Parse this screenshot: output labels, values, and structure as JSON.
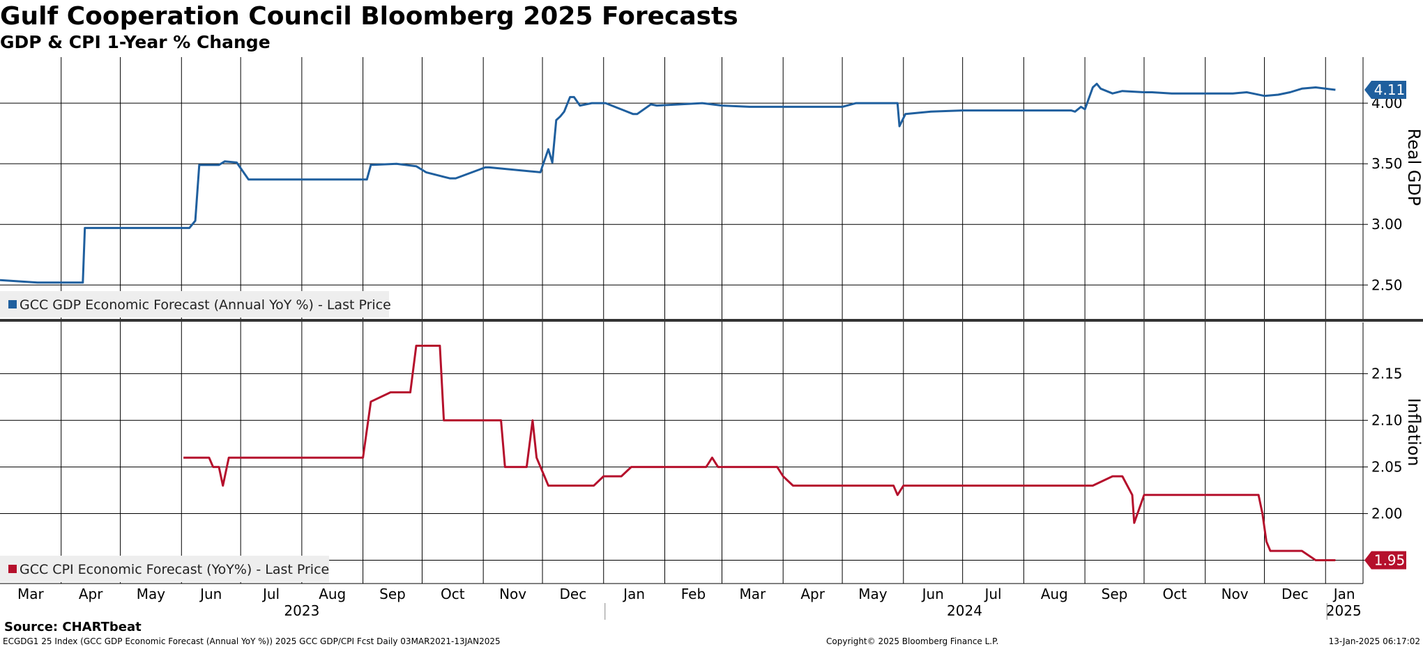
{
  "header": {
    "title": "Gulf Cooperation Council Bloomberg 2025 Forecasts",
    "subtitle": "GDP & CPI 1-Year % Change"
  },
  "footer": {
    "source": "Source: CHARTbeat",
    "description": "ECGDG1 25 Index (GCC GDP Economic Forecast (Annual YoY %)) 2025 GCC GDP/CPI Fcst  Daily 03MAR2021-13JAN2025",
    "copyright": "Copyright© 2025 Bloomberg Finance L.P.",
    "timestamp": "13-Jan-2025 06:17:02"
  },
  "colors": {
    "gdp": "#1f5f9e",
    "cpi": "#b5102c",
    "grid": "#000000",
    "legend_bg": "#eeeeee"
  },
  "chart_data": [
    {
      "type": "line",
      "ylabel": "Real GDP",
      "ylim": [
        2.22,
        4.38
      ],
      "yticks": [
        "2.50",
        "3.00",
        "3.50",
        "4.00"
      ],
      "legend": "GCC GDP Economic Forecast (Annual YoY %) - Last Price",
      "legend_position": "bottom-left",
      "last_value_label": "4.11",
      "series": [
        {
          "name": "GCC GDP Economic Forecast (Annual YoY %) - Last Price",
          "x": [
            "2023-03-01",
            "2023-03-20",
            "2023-04-12",
            "2023-04-13",
            "2023-06-05",
            "2023-06-08",
            "2023-06-10",
            "2023-06-20",
            "2023-06-23",
            "2023-06-29",
            "2023-07-05",
            "2023-09-03",
            "2023-09-05",
            "2023-09-18",
            "2023-09-28",
            "2023-10-03",
            "2023-10-15",
            "2023-10-18",
            "2023-11-02",
            "2023-11-04",
            "2023-11-30",
            "2023-12-01",
            "2023-12-04",
            "2023-12-06",
            "2023-12-08",
            "2023-12-10",
            "2023-12-12",
            "2023-12-15",
            "2023-12-17",
            "2023-12-20",
            "2023-12-26",
            "2023-12-28",
            "2024-01-01",
            "2024-01-02",
            "2024-01-16",
            "2024-01-18",
            "2024-01-25",
            "2024-01-28",
            "2024-02-20",
            "2024-03-01",
            "2024-03-15",
            "2024-03-22",
            "2024-04-01",
            "2024-04-05",
            "2024-05-01",
            "2024-05-08",
            "2024-05-29",
            "2024-05-30",
            "2024-06-02",
            "2024-06-15",
            "2024-07-01",
            "2024-08-25",
            "2024-08-27",
            "2024-08-30",
            "2024-09-01",
            "2024-09-05",
            "2024-09-07",
            "2024-09-09",
            "2024-09-15",
            "2024-09-20",
            "2024-10-01",
            "2024-10-05",
            "2024-10-15",
            "2024-11-08",
            "2024-11-15",
            "2024-11-22",
            "2024-11-25",
            "2024-12-01",
            "2024-12-08",
            "2024-12-14",
            "2024-12-20",
            "2024-12-27",
            "2025-01-06"
          ],
          "values": [
            2.54,
            2.52,
            2.52,
            2.97,
            2.97,
            3.03,
            3.49,
            3.49,
            3.52,
            3.51,
            3.37,
            3.37,
            3.49,
            3.5,
            3.48,
            3.43,
            3.38,
            3.38,
            3.47,
            3.47,
            3.43,
            3.48,
            3.62,
            3.51,
            3.86,
            3.89,
            3.93,
            4.05,
            4.05,
            3.98,
            4.0,
            4.0,
            4.0,
            4.0,
            3.91,
            3.91,
            3.99,
            3.98,
            4.0,
            3.98,
            3.97,
            3.97,
            3.97,
            3.97,
            3.97,
            4.0,
            4.0,
            3.81,
            3.91,
            3.93,
            3.94,
            3.94,
            3.93,
            3.97,
            3.95,
            4.13,
            4.16,
            4.12,
            4.08,
            4.1,
            4.09,
            4.09,
            4.08,
            4.08,
            4.08,
            4.09,
            4.08,
            4.06,
            4.07,
            4.09,
            4.12,
            4.13,
            4.11
          ]
        }
      ]
    },
    {
      "type": "line",
      "ylabel": "Inflation",
      "ylim": [
        1.925,
        2.205
      ],
      "yticks": [
        "1.95",
        "2.00",
        "2.05",
        "2.10",
        "2.15"
      ],
      "legend": "GCC CPI Economic Forecast (YoY%) - Last Price",
      "legend_position": "bottom-left",
      "last_value_label": "1.95",
      "series": [
        {
          "name": "GCC CPI Economic Forecast (YoY%) - Last Price",
          "x": [
            "2023-06-02",
            "2023-06-15",
            "2023-06-17",
            "2023-06-20",
            "2023-06-22",
            "2023-06-25",
            "2023-09-01",
            "2023-09-05",
            "2023-09-15",
            "2023-09-25",
            "2023-09-28",
            "2023-10-10",
            "2023-10-12",
            "2023-11-10",
            "2023-11-12",
            "2023-11-23",
            "2023-11-26",
            "2023-11-28",
            "2023-11-30",
            "2023-12-02",
            "2023-12-04",
            "2023-12-10",
            "2023-12-20",
            "2023-12-27",
            "2024-01-01",
            "2024-01-10",
            "2024-01-15",
            "2024-02-22",
            "2024-02-25",
            "2024-02-28",
            "2024-03-15",
            "2024-03-29",
            "2024-04-01",
            "2024-04-06",
            "2024-05-27",
            "2024-05-29",
            "2024-06-01",
            "2024-09-05",
            "2024-09-15",
            "2024-09-20",
            "2024-09-25",
            "2024-09-26",
            "2024-10-01",
            "2024-11-28",
            "2024-11-30",
            "2024-12-02",
            "2024-12-04",
            "2024-12-20",
            "2024-12-27",
            "2025-01-06"
          ],
          "values": [
            2.06,
            2.06,
            2.05,
            2.05,
            2.03,
            2.06,
            2.06,
            2.12,
            2.13,
            2.13,
            2.18,
            2.18,
            2.1,
            2.1,
            2.05,
            2.05,
            2.1,
            2.06,
            2.05,
            2.04,
            2.03,
            2.03,
            2.03,
            2.03,
            2.04,
            2.04,
            2.05,
            2.05,
            2.06,
            2.05,
            2.05,
            2.05,
            2.04,
            2.03,
            2.03,
            2.02,
            2.03,
            2.03,
            2.04,
            2.04,
            2.02,
            1.99,
            2.02,
            2.02,
            2.0,
            1.97,
            1.96,
            1.96,
            1.95,
            1.95
          ]
        }
      ]
    }
  ],
  "x_axis": {
    "range": [
      "2023-03-01",
      "2025-01-20"
    ],
    "months": [
      {
        "label": "Mar",
        "date": "2023-03-01"
      },
      {
        "label": "Apr",
        "date": "2023-04-01"
      },
      {
        "label": "May",
        "date": "2023-05-01"
      },
      {
        "label": "Jun",
        "date": "2023-06-01"
      },
      {
        "label": "Jul",
        "date": "2023-07-01"
      },
      {
        "label": "Aug",
        "date": "2023-08-01"
      },
      {
        "label": "Sep",
        "date": "2023-09-01"
      },
      {
        "label": "Oct",
        "date": "2023-10-01"
      },
      {
        "label": "Nov",
        "date": "2023-11-01"
      },
      {
        "label": "Dec",
        "date": "2023-12-01"
      },
      {
        "label": "Jan",
        "date": "2024-01-01"
      },
      {
        "label": "Feb",
        "date": "2024-02-01"
      },
      {
        "label": "Mar",
        "date": "2024-03-01"
      },
      {
        "label": "Apr",
        "date": "2024-04-01"
      },
      {
        "label": "May",
        "date": "2024-05-01"
      },
      {
        "label": "Jun",
        "date": "2024-06-01"
      },
      {
        "label": "Jul",
        "date": "2024-07-01"
      },
      {
        "label": "Aug",
        "date": "2024-08-01"
      },
      {
        "label": "Sep",
        "date": "2024-09-01"
      },
      {
        "label": "Oct",
        "date": "2024-10-01"
      },
      {
        "label": "Nov",
        "date": "2024-11-01"
      },
      {
        "label": "Dec",
        "date": "2024-12-01"
      },
      {
        "label": "Jan",
        "date": "2025-01-01"
      }
    ],
    "years": [
      {
        "label": "2023",
        "start": "2023-03-01",
        "end": "2024-01-01"
      },
      {
        "label": "2024",
        "start": "2024-01-01",
        "end": "2025-01-01"
      },
      {
        "label": "2025",
        "start": "2025-01-01",
        "end": "2025-01-20"
      }
    ]
  }
}
